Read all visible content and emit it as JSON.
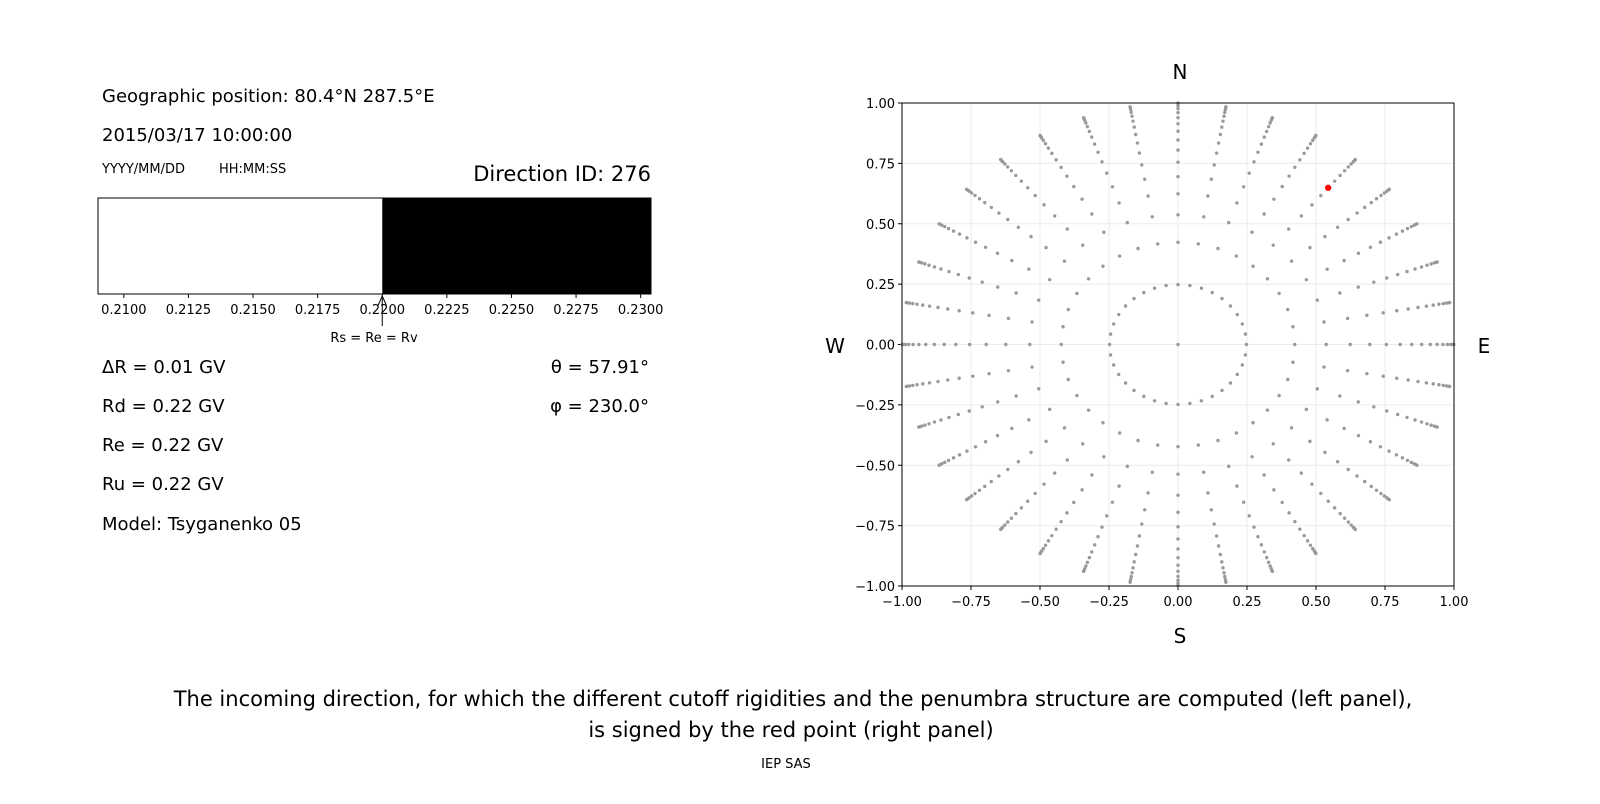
{
  "info": {
    "geo_position": "Geographic position: 80.4°N 287.5°E",
    "datetime": "2015/03/17 10:00:00",
    "date_format": "YYYY/MM/DD",
    "time_format": "HH:MM:SS",
    "direction_id": "Direction ID: 276",
    "delta_r": "ΔR = 0.01 GV",
    "rd": "Rd = 0.22 GV",
    "re": "Re = 0.22 GV",
    "ru": "Ru = 0.22 GV",
    "model": "Model: Tsyganenko 05",
    "theta": "θ = 57.91°",
    "phi": "φ = 230.0°"
  },
  "caption": {
    "line1": "The incoming direction, for which the different cutoff rigidities and the penumbra structure are computed (left panel),",
    "line2": "is signed by the red point (right panel)",
    "credit": "IEP SAS"
  },
  "compass": {
    "n": "N",
    "s": "S",
    "w": "W",
    "e": "E"
  },
  "chart_data": [
    {
      "type": "bar",
      "description_role": "penumbra",
      "xlim": [
        0.209,
        0.2304
      ],
      "xticks": [
        0.21,
        0.2125,
        0.215,
        0.2175,
        0.22,
        0.2225,
        0.225,
        0.2275,
        0.23
      ],
      "xtick_labels": [
        "0.2100",
        "0.2125",
        "0.2150",
        "0.2175",
        "0.2200",
        "0.2225",
        "0.2250",
        "0.2275",
        "0.2300"
      ],
      "segments": [
        {
          "from": 0.209,
          "to": 0.22,
          "color": "#ffffff"
        },
        {
          "from": 0.22,
          "to": 0.2304,
          "color": "#000000"
        }
      ],
      "annotation": {
        "text": "Rs = Re = Rv",
        "x": 0.22
      }
    },
    {
      "type": "scatter",
      "xlim": [
        -1,
        1
      ],
      "ylim": [
        -1,
        1
      ],
      "grid": true,
      "xticks": [
        -1,
        -0.75,
        -0.5,
        -0.25,
        0,
        0.25,
        0.5,
        0.75,
        1
      ],
      "xtick_labels": [
        "−1.00",
        "−0.75",
        "−0.50",
        "−0.25",
        "0.00",
        "0.25",
        "0.50",
        "0.75",
        "1.00"
      ],
      "yticks": [
        -1,
        -0.75,
        -0.5,
        -0.25,
        0,
        0.25,
        0.5,
        0.75,
        1
      ],
      "ytick_labels": [
        "−1.00",
        "−0.75",
        "−0.50",
        "−0.25",
        "0.00",
        "0.25",
        "0.50",
        "0.75",
        "1.00"
      ],
      "points_grid": {
        "center": [
          0,
          0
        ],
        "azimuth_step_deg": 10,
        "radii": [
          0.248,
          0.423,
          0.537,
          0.624,
          0.695,
          0.755,
          0.805,
          0.847,
          0.883,
          0.914,
          0.939,
          0.96,
          0.976,
          0.988,
          0.996,
          0.9995
        ],
        "color": "#999999"
      },
      "highlight": {
        "x": 0.544,
        "y": 0.649,
        "color": "#ff0000"
      }
    }
  ]
}
